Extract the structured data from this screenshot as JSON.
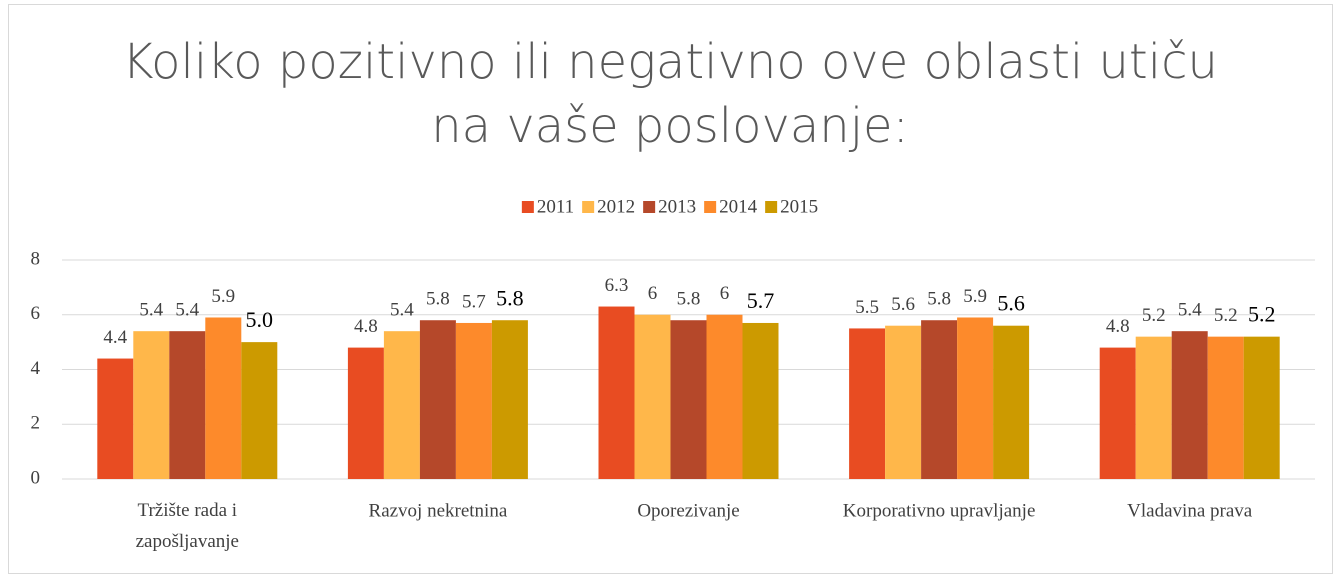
{
  "chart_data": {
    "type": "bar",
    "title": "Koliko pozitivno ili negativno ove oblasti utiču na vaše poslovanje:",
    "categories": [
      "Tržište rada i zapošljavanje",
      "Razvoj nekretnina",
      "Oporezivanje",
      "Korporativno upravljanje",
      "Vladavina prava"
    ],
    "series": [
      {
        "name": "2011",
        "color": "#e84c22",
        "values": [
          4.4,
          4.8,
          6.3,
          5.5,
          4.8
        ]
      },
      {
        "name": "2012",
        "color": "#ffb74a",
        "values": [
          5.4,
          5.4,
          6,
          5.6,
          5.2
        ]
      },
      {
        "name": "2013",
        "color": "#b5482a",
        "values": [
          5.4,
          5.8,
          5.8,
          5.8,
          5.4
        ]
      },
      {
        "name": "2014",
        "color": "#fd8a2b",
        "values": [
          5.9,
          5.7,
          6,
          5.9,
          5.2
        ]
      },
      {
        "name": "2015",
        "color": "#cc9a00",
        "values": [
          5.0,
          5.8,
          5.7,
          5.6,
          5.2
        ],
        "value_labels": [
          "5.0",
          "5.8",
          "5.7",
          "5.6",
          "5.2"
        ]
      }
    ],
    "ylim": [
      0,
      8
    ],
    "yticks": [
      0,
      2,
      4,
      6,
      8
    ],
    "grid": true,
    "legend": "top"
  }
}
